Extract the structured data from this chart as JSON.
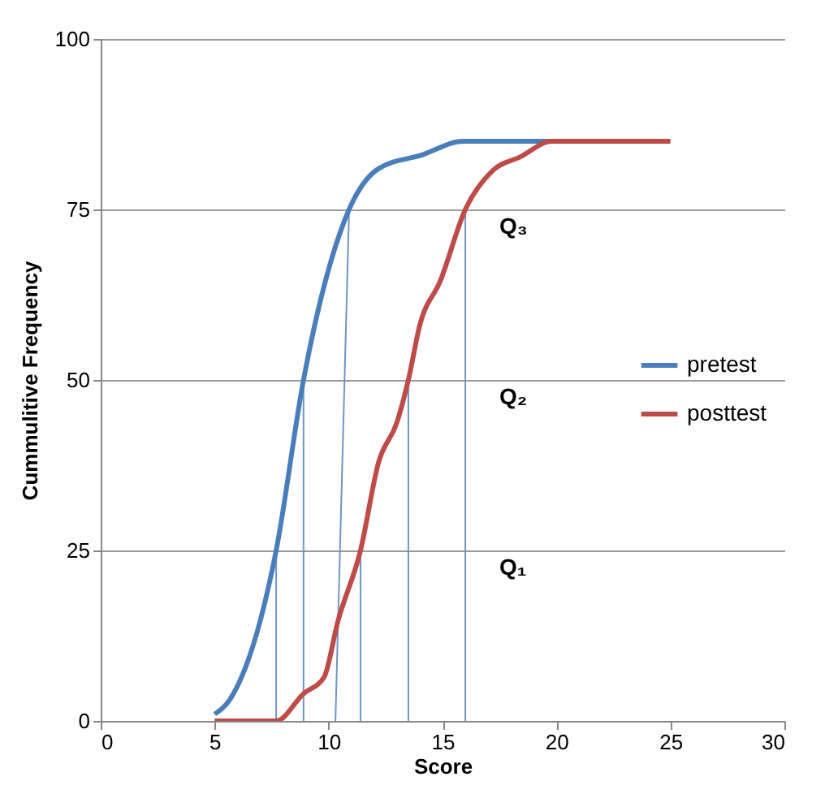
{
  "chart_data": {
    "type": "line",
    "xlabel": "Score",
    "ylabel": "Cummulitive Frequency",
    "xlim": [
      0,
      30
    ],
    "xticks": [
      0,
      5,
      10,
      15,
      20,
      25,
      30
    ],
    "ylim": [
      0,
      100
    ],
    "yticks": [
      0,
      25,
      50,
      75,
      100
    ],
    "grid": "y",
    "legend": "right",
    "series": [
      {
        "name": "pretest",
        "color": "#4a7ebb",
        "x": [
          5,
          5.7,
          7.7,
          8.9,
          10.9,
          12.2,
          14.1,
          15.9,
          19.8
        ],
        "values": [
          1,
          3.3,
          25,
          50,
          75,
          81,
          83,
          85,
          85
        ]
      },
      {
        "name": "posttest",
        "color": "#be4b48",
        "x": [
          5,
          6.9,
          7.7,
          8.9,
          9.8,
          10.4,
          11.4,
          12.2,
          13,
          13.5,
          14,
          14.9,
          16,
          17.2,
          18.4,
          19.8,
          25
        ],
        "values": [
          0,
          0,
          0,
          4,
          6.4,
          14.5,
          25,
          38,
          43.8,
          50,
          58,
          64.5,
          75,
          80.7,
          82.7,
          85,
          85
        ]
      },
      {
        "color": "#6f95c4",
        "x": [
          7.7,
          7.7
        ],
        "values": [
          0,
          25
        ]
      },
      {
        "color": "#6f95c4",
        "x": [
          8.9,
          8.9
        ],
        "values": [
          0,
          50
        ]
      },
      {
        "color": "#6f95c4",
        "x": [
          10.3,
          10.9
        ],
        "values": [
          0,
          75
        ]
      },
      {
        "color": "#6f95c4",
        "x": [
          11.4,
          11.4
        ],
        "values": [
          0,
          25
        ]
      },
      {
        "color": "#6f95c4",
        "x": [
          13.5,
          13.5
        ],
        "values": [
          0,
          50
        ]
      },
      {
        "color": "#6f95c4",
        "x": [
          16,
          16
        ],
        "values": [
          0,
          75
        ]
      }
    ],
    "annotations": [
      "Q₃",
      "Q₂",
      "Q₁"
    ]
  }
}
